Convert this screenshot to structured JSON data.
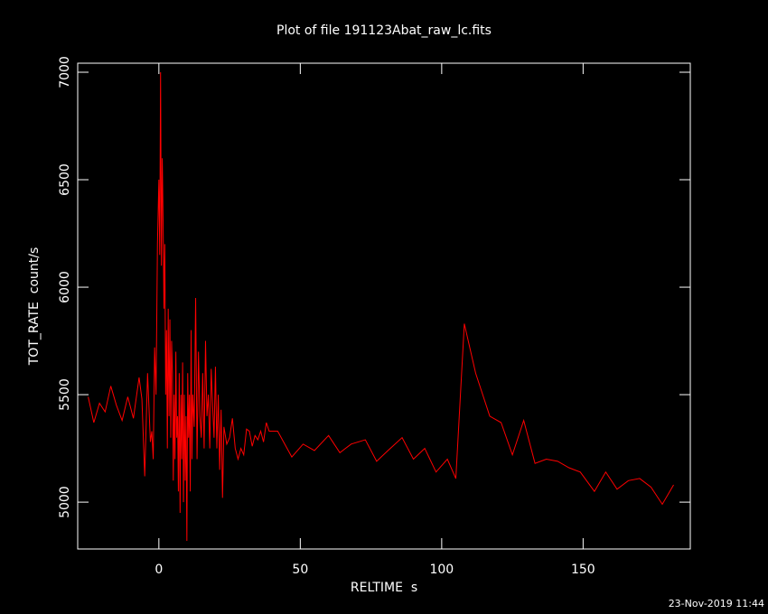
{
  "chart_data": {
    "type": "line",
    "title": "Plot of file 191123Abat_raw_lc.fits",
    "x_label": "RELTIME  s",
    "y_label": "TOT_RATE  count/s",
    "footer": "23-Nov-2019 11:44",
    "color": "#ff0000",
    "xlim": [
      -28.7,
      187.9
    ],
    "ylim": [
      4782,
      7042
    ],
    "xticks": [
      0,
      50,
      100,
      150
    ],
    "yticks": [
      5000,
      5500,
      6000,
      6500,
      7000
    ],
    "x": [
      -25,
      -23,
      -21,
      -19,
      -17,
      -15,
      -13,
      -11,
      -9,
      -7,
      -6,
      -5,
      -4,
      -3,
      -2.5,
      -2,
      -1.5,
      -1,
      -0.5,
      0,
      0.3,
      0.6,
      0.9,
      1.2,
      1.5,
      1.8,
      2.1,
      2.4,
      2.7,
      3,
      3.3,
      3.6,
      3.9,
      4.2,
      4.5,
      4.8,
      5.1,
      5.4,
      5.7,
      6,
      6.3,
      6.6,
      6.9,
      7.2,
      7.5,
      7.8,
      8.1,
      8.4,
      8.7,
      9,
      9.3,
      9.6,
      9.9,
      10.2,
      10.5,
      10.8,
      11.1,
      11.4,
      11.7,
      12,
      12.5,
      13,
      13.5,
      14,
      14.5,
      15,
      15.5,
      16,
      16.5,
      17,
      17.5,
      18,
      18.5,
      19,
      19.5,
      20,
      20.5,
      21,
      21.5,
      22,
      22.5,
      23,
      24,
      25,
      26,
      27,
      28,
      29,
      30,
      31,
      32,
      33,
      34,
      35,
      36,
      37,
      38,
      39,
      42,
      47,
      51,
      55,
      60,
      64,
      68,
      73,
      77,
      81,
      86,
      90,
      94,
      98,
      102,
      105,
      108,
      112,
      117,
      121,
      125,
      129,
      133,
      137,
      141,
      145,
      149,
      154,
      158,
      162,
      166,
      170,
      174,
      178,
      182
    ],
    "values": [
      5490,
      5370,
      5460,
      5420,
      5540,
      5450,
      5380,
      5490,
      5390,
      5580,
      5480,
      5120,
      5600,
      5280,
      5330,
      5200,
      5720,
      5500,
      6200,
      6500,
      6150,
      7000,
      6100,
      6600,
      6300,
      5900,
      6200,
      5500,
      5800,
      5250,
      5900,
      5400,
      5850,
      5300,
      5750,
      5600,
      5100,
      5500,
      5200,
      5700,
      5300,
      5400,
      5050,
      5600,
      4950,
      5500,
      5200,
      5650,
      5000,
      5500,
      5100,
      5400,
      4820,
      5600,
      5300,
      5500,
      5050,
      5800,
      5200,
      5500,
      5350,
      5950,
      5200,
      5700,
      5400,
      5300,
      5600,
      5250,
      5750,
      5400,
      5500,
      5250,
      5620,
      5450,
      5300,
      5630,
      5250,
      5500,
      5150,
      5430,
      5020,
      5350,
      5270,
      5300,
      5390,
      5250,
      5200,
      5250,
      5220,
      5340,
      5330,
      5260,
      5310,
      5290,
      5330,
      5280,
      5370,
      5330,
      5330,
      5210,
      5270,
      5240,
      5310,
      5230,
      5270,
      5290,
      5190,
      5240,
      5300,
      5200,
      5250,
      5140,
      5200,
      5110,
      5830,
      5600,
      5400,
      5370,
      5220,
      5380,
      5180,
      5200,
      5190,
      5160,
      5140,
      5050,
      5140,
      5060,
      5100,
      5110,
      5070,
      4990,
      5080
    ]
  }
}
